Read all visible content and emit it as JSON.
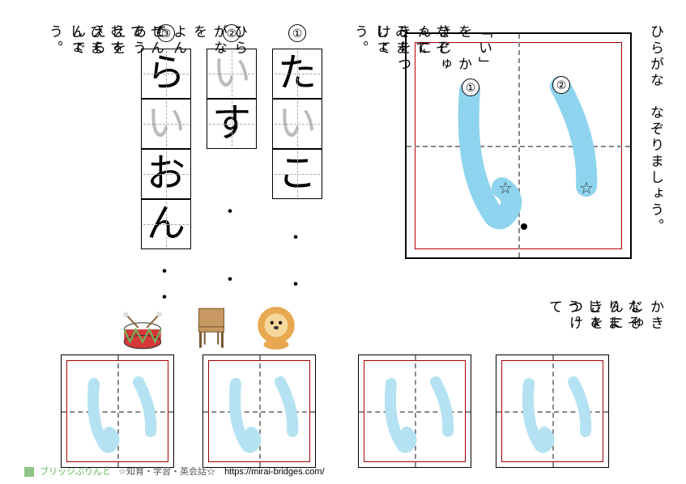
{
  "title_right": "ひらがな　なぞりましょう。",
  "instruction1": "「い」を　かきじゅんに　きをつけて",
  "instruction1b": "なぞって　みましょう。",
  "instruction2": "かきじゅんに　きをつけて",
  "instruction2b": "なぞりましょう。",
  "instruction3": "ひらがなを　よんで　あうえを　えらんで",
  "instruction3b": "せんで　むすびましょう。",
  "circle1": "①",
  "circle2": "②",
  "circle3": "③",
  "word1": [
    {
      "ch": "た",
      "cls": ""
    },
    {
      "ch": "い",
      "cls": "grey"
    },
    {
      "ch": "こ",
      "cls": ""
    }
  ],
  "word2": [
    {
      "ch": "い",
      "cls": "grey"
    },
    {
      "ch": "す",
      "cls": ""
    }
  ],
  "word3": [
    {
      "ch": "ら",
      "cls": ""
    },
    {
      "ch": "い",
      "cls": "grey"
    },
    {
      "ch": "お",
      "cls": ""
    },
    {
      "ch": "ん",
      "cls": ""
    }
  ],
  "main_strokes": {
    "num1": "①",
    "num2": "②",
    "star": "☆",
    "stroke_color": "#8fd4ee"
  },
  "footer_brand": "ブリッジぷりんと",
  "footer_tag": "☆知育・学習・英会話☆",
  "footer_url": "https://mirai-bridges.com/"
}
